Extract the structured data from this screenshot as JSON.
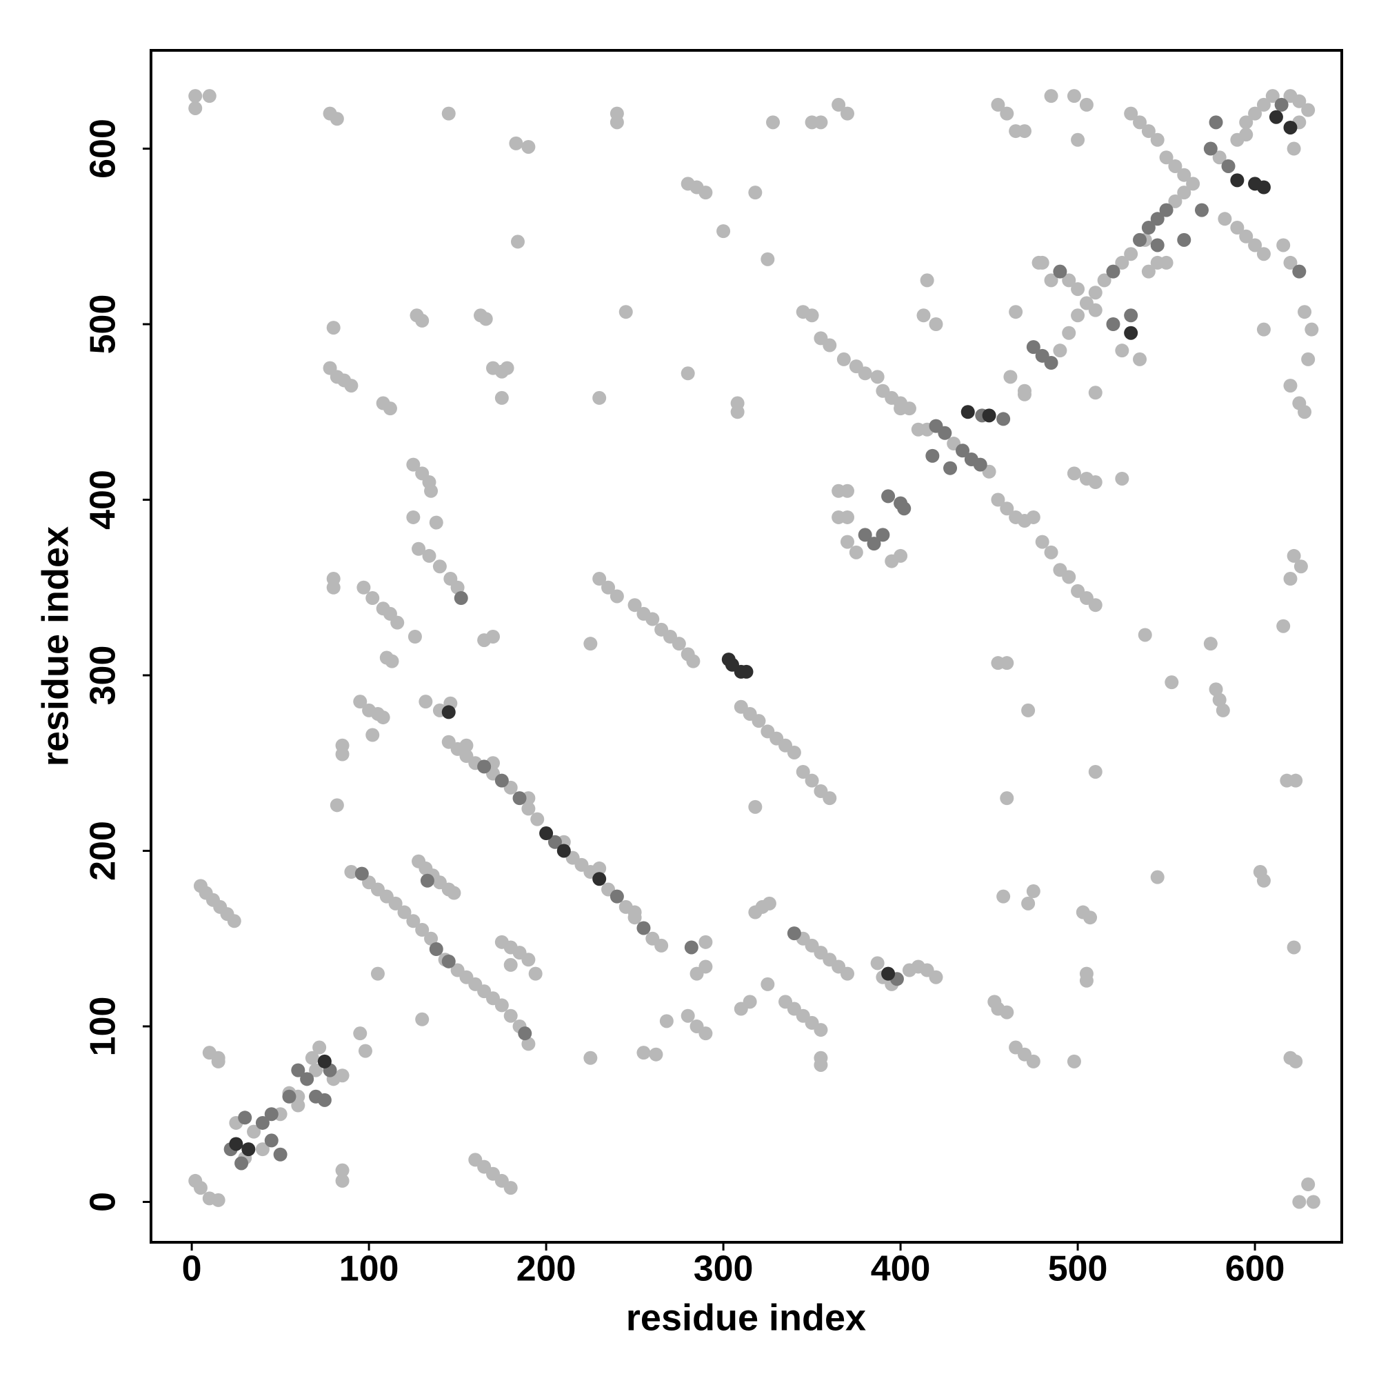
{
  "chart_data": {
    "type": "scatter",
    "xlabel": "residue index",
    "ylabel": "residue index",
    "xlim": [
      -23,
      649
    ],
    "ylim": [
      -23,
      656
    ],
    "xticks": [
      0,
      100,
      200,
      300,
      400,
      500,
      600
    ],
    "yticks": [
      0,
      100,
      200,
      300,
      400,
      500,
      600
    ],
    "series": [
      {
        "color": "#b8b8b8",
        "x": [
          2,
          2,
          10,
          78,
          82,
          145,
          240,
          240,
          183,
          190,
          328,
          350,
          355,
          365,
          370,
          280,
          285,
          290,
          300,
          318,
          184,
          325,
          245,
          127,
          130,
          163,
          166,
          80,
          78,
          82,
          86,
          90,
          108,
          112,
          170,
          175,
          178,
          175,
          230,
          280,
          308,
          308,
          125,
          130,
          134,
          135,
          125,
          138,
          128,
          134,
          140,
          146,
          150,
          80,
          80,
          97,
          102,
          108,
          112,
          116,
          126,
          165,
          170,
          110,
          113,
          132,
          140,
          146,
          95,
          100,
          105,
          108,
          102,
          85,
          85,
          82,
          230,
          235,
          240,
          250,
          255,
          260,
          265,
          270,
          275,
          280,
          283,
          225,
          310,
          315,
          320,
          325,
          330,
          335,
          340,
          345,
          350,
          355,
          360,
          318,
          145,
          150,
          155,
          160,
          170,
          180,
          190,
          195,
          215,
          220,
          225,
          235,
          245,
          250,
          260,
          265,
          155,
          170,
          190,
          210,
          230,
          250,
          90,
          100,
          105,
          110,
          115,
          120,
          125,
          130,
          135,
          143,
          150,
          155,
          160,
          165,
          170,
          175,
          180,
          185,
          190,
          128,
          132,
          136,
          140,
          145,
          148,
          130,
          105,
          5,
          8,
          12,
          16,
          20,
          24,
          175,
          180,
          185,
          190,
          194,
          180,
          10,
          15,
          15,
          160,
          165,
          170,
          175,
          180,
          2,
          5,
          10,
          15,
          85,
          85,
          95,
          98,
          225,
          255,
          262,
          268,
          280,
          285,
          290,
          285,
          290,
          290,
          310,
          315,
          325,
          318,
          322,
          326,
          345,
          350,
          355,
          360,
          365,
          370,
          335,
          340,
          345,
          350,
          355,
          355,
          355,
          387,
          390,
          395,
          405,
          410,
          415,
          420,
          453,
          455,
          460,
          465,
          470,
          475,
          458,
          472,
          475,
          498,
          505,
          505,
          503,
          507,
          545,
          603,
          605,
          618,
          623,
          620,
          623,
          622,
          625,
          630,
          633,
          538,
          575,
          578,
          580,
          582,
          553,
          616,
          620,
          622,
          626,
          620,
          625,
          628,
          630,
          632,
          605,
          628,
          455,
          460,
          472,
          510,
          460,
          400,
          375,
          370,
          395,
          365,
          370,
          365,
          370,
          455,
          460,
          465,
          470,
          475,
          480,
          485,
          490,
          495,
          500,
          505,
          510,
          498,
          505,
          510,
          525,
          387,
          390,
          395,
          400,
          405,
          345,
          350,
          355,
          360,
          368,
          375,
          380,
          415,
          413,
          420,
          465,
          462,
          470,
          510,
          430,
          450,
          415,
          490,
          495,
          500,
          505,
          510,
          515,
          525,
          495,
          500,
          510,
          535,
          525,
          478,
          485,
          530,
          550,
          540,
          555,
          560,
          565,
          580,
          595,
          590,
          595,
          600,
          605,
          610,
          620,
          625,
          630,
          625,
          622,
          583,
          590,
          595,
          600,
          605,
          616,
          620,
          530,
          535,
          540,
          545,
          550,
          555,
          560,
          538,
          545,
          455,
          460,
          465,
          470,
          485,
          498,
          500,
          505,
          480,
          470,
          30,
          35,
          50,
          60,
          70,
          80,
          85,
          60,
          40,
          25,
          68,
          72,
          55,
          410,
          400
        ],
        "y": [
          630,
          623,
          630,
          620,
          617,
          620,
          620,
          615,
          603,
          601,
          615,
          615,
          615,
          625,
          620,
          580,
          578,
          575,
          553,
          575,
          547,
          537,
          507,
          505,
          502,
          505,
          503,
          498,
          475,
          470,
          468,
          465,
          455,
          452,
          475,
          473,
          475,
          458,
          458,
          472,
          455,
          450,
          420,
          415,
          410,
          405,
          390,
          387,
          372,
          368,
          362,
          355,
          350,
          355,
          350,
          350,
          344,
          338,
          335,
          330,
          322,
          320,
          322,
          310,
          308,
          285,
          280,
          284,
          285,
          280,
          278,
          276,
          266,
          260,
          255,
          226,
          355,
          350,
          345,
          340,
          335,
          332,
          326,
          322,
          318,
          312,
          308,
          318,
          282,
          278,
          274,
          268,
          264,
          260,
          256,
          245,
          240,
          234,
          230,
          225,
          262,
          258,
          254,
          250,
          244,
          236,
          224,
          218,
          196,
          192,
          188,
          178,
          168,
          162,
          150,
          146,
          260,
          250,
          230,
          205,
          190,
          165,
          188,
          182,
          178,
          174,
          170,
          165,
          160,
          155,
          150,
          138,
          132,
          128,
          124,
          120,
          116,
          112,
          106,
          100,
          90,
          194,
          190,
          186,
          182,
          178,
          176,
          104,
          130,
          180,
          176,
          172,
          168,
          164,
          160,
          148,
          145,
          142,
          138,
          130,
          135,
          85,
          82,
          80,
          24,
          20,
          16,
          12,
          8,
          12,
          8,
          2,
          1,
          18,
          12,
          96,
          86,
          82,
          85,
          84,
          103,
          106,
          100,
          96,
          130,
          134,
          148,
          110,
          114,
          124,
          165,
          168,
          170,
          150,
          146,
          142,
          138,
          134,
          130,
          114,
          110,
          106,
          102,
          98,
          82,
          78,
          136,
          128,
          124,
          132,
          134,
          132,
          128,
          114,
          110,
          108,
          88,
          84,
          80,
          174,
          170,
          177,
          80,
          130,
          126,
          165,
          162,
          185,
          188,
          183,
          240,
          240,
          82,
          80,
          145,
          0,
          10,
          0,
          323,
          318,
          292,
          286,
          280,
          296,
          328,
          355,
          368,
          362,
          465,
          455,
          450,
          480,
          497,
          497,
          507,
          307,
          307,
          280,
          245,
          230,
          368,
          370,
          376,
          365,
          390,
          390,
          405,
          405,
          400,
          395,
          390,
          388,
          390,
          376,
          370,
          360,
          356,
          348,
          344,
          340,
          415,
          412,
          410,
          412,
          470,
          462,
          458,
          455,
          452,
          507,
          505,
          492,
          488,
          480,
          476,
          472,
          525,
          505,
          500,
          507,
          470,
          462,
          461,
          432,
          416,
          440,
          485,
          495,
          505,
          512,
          518,
          525,
          535,
          525,
          520,
          508,
          480,
          485,
          535,
          525,
          540,
          535,
          530,
          570,
          575,
          580,
          595,
          608,
          605,
          615,
          620,
          625,
          630,
          630,
          627,
          622,
          615,
          600,
          560,
          555,
          550,
          545,
          540,
          545,
          535,
          620,
          615,
          610,
          605,
          595,
          590,
          585,
          548,
          535,
          625,
          620,
          610,
          610,
          630,
          630,
          605,
          625,
          535,
          460,
          25,
          40,
          50,
          60,
          75,
          70,
          72,
          55,
          30,
          45,
          82,
          88,
          62,
          440,
          452
        ]
      },
      {
        "color": "#777777",
        "x": [
          152,
          165,
          175,
          185,
          205,
          240,
          255,
          96,
          138,
          145,
          188,
          133,
          282,
          340,
          398,
          380,
          385,
          390,
          393,
          400,
          402,
          446,
          458,
          420,
          425,
          435,
          440,
          445,
          418,
          428,
          475,
          480,
          485,
          520,
          490,
          520,
          530,
          535,
          540,
          545,
          550,
          570,
          560,
          545,
          575,
          585,
          615,
          578,
          625,
          22,
          28,
          40,
          45,
          55,
          65,
          78,
          70,
          45,
          50,
          30,
          60,
          75
        ],
        "y": [
          344,
          248,
          240,
          230,
          205,
          174,
          156,
          187,
          144,
          137,
          96,
          183,
          145,
          153,
          127,
          380,
          375,
          380,
          402,
          398,
          395,
          448,
          446,
          442,
          438,
          428,
          423,
          420,
          425,
          418,
          487,
          482,
          478,
          530,
          530,
          500,
          505,
          548,
          555,
          560,
          565,
          565,
          548,
          545,
          600,
          590,
          625,
          615,
          530,
          30,
          22,
          45,
          50,
          60,
          70,
          75,
          60,
          35,
          27,
          48,
          75,
          58
        ]
      },
      {
        "color": "#2e2e2e",
        "x": [
          145,
          200,
          210,
          230,
          393,
          438,
          450,
          530,
          590,
          600,
          605,
          612,
          620,
          25,
          32,
          75,
          303,
          305,
          310,
          313
        ],
        "y": [
          279,
          210,
          200,
          184,
          130,
          450,
          448,
          495,
          582,
          580,
          578,
          618,
          612,
          33,
          30,
          80,
          309,
          306,
          302,
          302
        ]
      }
    ]
  }
}
